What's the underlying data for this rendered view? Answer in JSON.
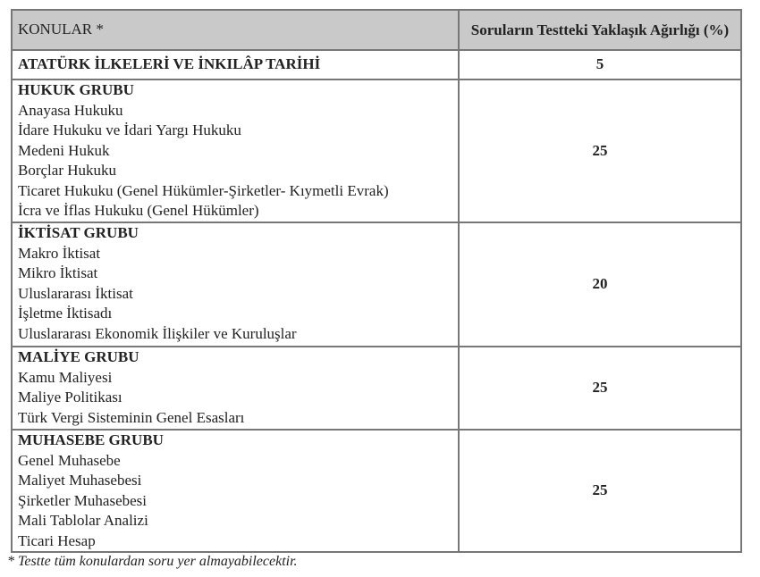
{
  "header": {
    "col1": "KONULAR *",
    "col2": "Soruların Testteki Yaklaşık Ağırlığı (%)"
  },
  "rows": [
    {
      "title": "ATATÜRK İLKELERİ VE İNKILÂP TARİHİ",
      "items": [],
      "weight": "5"
    },
    {
      "title": "HUKUK GRUBU",
      "items": [
        "Anayasa Hukuku",
        "İdare Hukuku ve İdari Yargı Hukuku",
        "Medeni Hukuk",
        "Borçlar Hukuku",
        "Ticaret Hukuku (Genel Hükümler-Şirketler- Kıymetli Evrak)",
        "İcra ve İflas Hukuku (Genel Hükümler)"
      ],
      "weight": "25"
    },
    {
      "title": "İKTİSAT GRUBU",
      "items": [
        "Makro İktisat",
        "Mikro İktisat",
        "Uluslararası İktisat",
        "İşletme İktisadı",
        "Uluslararası Ekonomik İlişkiler ve Kuruluşlar"
      ],
      "weight": "20"
    },
    {
      "title": "MALİYE GRUBU",
      "items": [
        "Kamu Maliyesi",
        "Maliye Politikası",
        "Türk Vergi Sisteminin Genel Esasları"
      ],
      "weight": "25"
    },
    {
      "title": "MUHASEBE GRUBU",
      "items": [
        "Genel Muhasebe",
        "Maliyet Muhasebesi",
        "Şirketler Muhasebesi",
        "Mali Tablolar Analizi",
        "Ticari Hesap"
      ],
      "weight": "25"
    }
  ],
  "footnote": "* Testte tüm konulardan soru yer almayabilecektir."
}
